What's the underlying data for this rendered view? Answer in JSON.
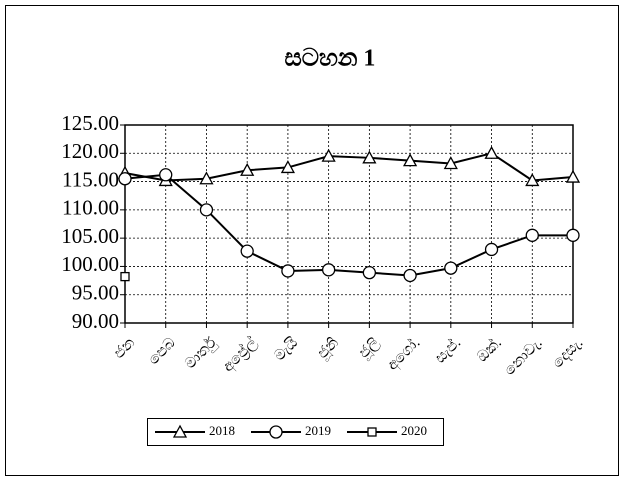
{
  "chart_data": {
    "type": "line",
    "title": "සටහන 1",
    "categories": [
      "ජන",
      "පෙබ",
      "මාර්තු",
      "අප්‍රේල්",
      "මැයි",
      "ජූනි",
      "ජූලි",
      "අගෝ.",
      "සැප්.",
      "ඔක්.",
      "නොවැ.",
      "දෙසැ."
    ],
    "series": [
      {
        "name": "2018",
        "color": "#000000",
        "marker": "triangle",
        "values": [
          116.5,
          115.2,
          115.5,
          117.0,
          117.5,
          119.5,
          119.2,
          118.7,
          118.2,
          120.0,
          115.2,
          115.8
        ]
      },
      {
        "name": "2019",
        "color": "#000000",
        "marker": "circle",
        "values": [
          115.5,
          116.2,
          110.0,
          102.7,
          99.2,
          99.4,
          98.9,
          98.4,
          99.7,
          103.0,
          105.5,
          105.5
        ]
      },
      {
        "name": "2020",
        "color": "#000000",
        "marker": "square",
        "values": [
          98.2,
          null,
          null,
          null,
          null,
          null,
          null,
          null,
          null,
          null,
          null,
          null
        ]
      }
    ],
    "ylim": [
      90,
      125
    ],
    "yticks": [
      {
        "value": 90,
        "label": "90.00"
      },
      {
        "value": 95,
        "label": "95.00"
      },
      {
        "value": 100,
        "label": "100.00"
      },
      {
        "value": 105,
        "label": "105.00"
      },
      {
        "value": 110,
        "label": "110.00"
      },
      {
        "value": 115,
        "label": "115.00"
      },
      {
        "value": 120,
        "label": "120.00"
      },
      {
        "value": 125,
        "label": "125.00"
      }
    ],
    "grid": true,
    "legend": "bottom"
  }
}
